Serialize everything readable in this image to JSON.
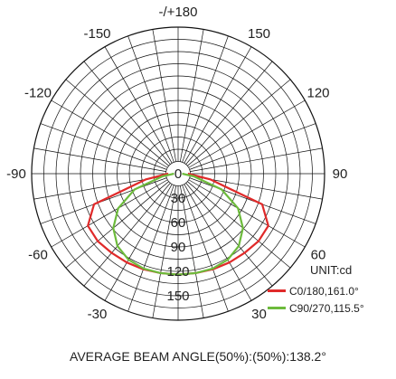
{
  "chart_data": {
    "type": "polar",
    "unit": "UNIT:cd",
    "angular_ticks": [
      {
        "deg": 180,
        "label": "-/+180"
      },
      {
        "deg": 150,
        "label": "150"
      },
      {
        "deg": 120,
        "label": "120"
      },
      {
        "deg": 90,
        "label": "90"
      },
      {
        "deg": 60,
        "label": "60"
      },
      {
        "deg": 30,
        "label": "30"
      },
      {
        "deg": -150,
        "label": "-150"
      },
      {
        "deg": -120,
        "label": "-120"
      },
      {
        "deg": -90,
        "label": "-90"
      },
      {
        "deg": -60,
        "label": "-60"
      },
      {
        "deg": -30,
        "label": "-30"
      }
    ],
    "radial_ticks": [
      0,
      30,
      60,
      90,
      120,
      150
    ],
    "radial_tick_labels": [
      "0",
      "30",
      "60",
      "90",
      "120",
      "150"
    ],
    "radial_max": 180,
    "series": [
      {
        "name": "C0/180,161.0°",
        "color": "#e02a2a",
        "angles": [
          -90,
          -80,
          -70,
          -60,
          -50,
          -40,
          -30,
          -20,
          -10,
          0,
          10,
          20,
          30,
          40,
          50,
          60,
          70,
          80,
          90
        ],
        "values": [
          12,
          40,
          110,
          128,
          129,
          127,
          126,
          125,
          124,
          124,
          124,
          125,
          126,
          127,
          129,
          128,
          110,
          40,
          12
        ]
      },
      {
        "name": "C90/270,115.5°",
        "color": "#6dbb3c",
        "angles": [
          -90,
          -80,
          -70,
          -60,
          -50,
          -40,
          -30,
          -20,
          -10,
          0,
          10,
          20,
          30,
          40,
          50,
          60,
          70,
          80,
          90
        ],
        "values": [
          5,
          20,
          57,
          85,
          104,
          116,
          122,
          124,
          124,
          124,
          124,
          124,
          122,
          116,
          104,
          85,
          57,
          20,
          5
        ]
      }
    ]
  },
  "legend_title": "UNIT:cd",
  "footer": "AVERAGE BEAM ANGLE(50%):(50%):138.2°"
}
